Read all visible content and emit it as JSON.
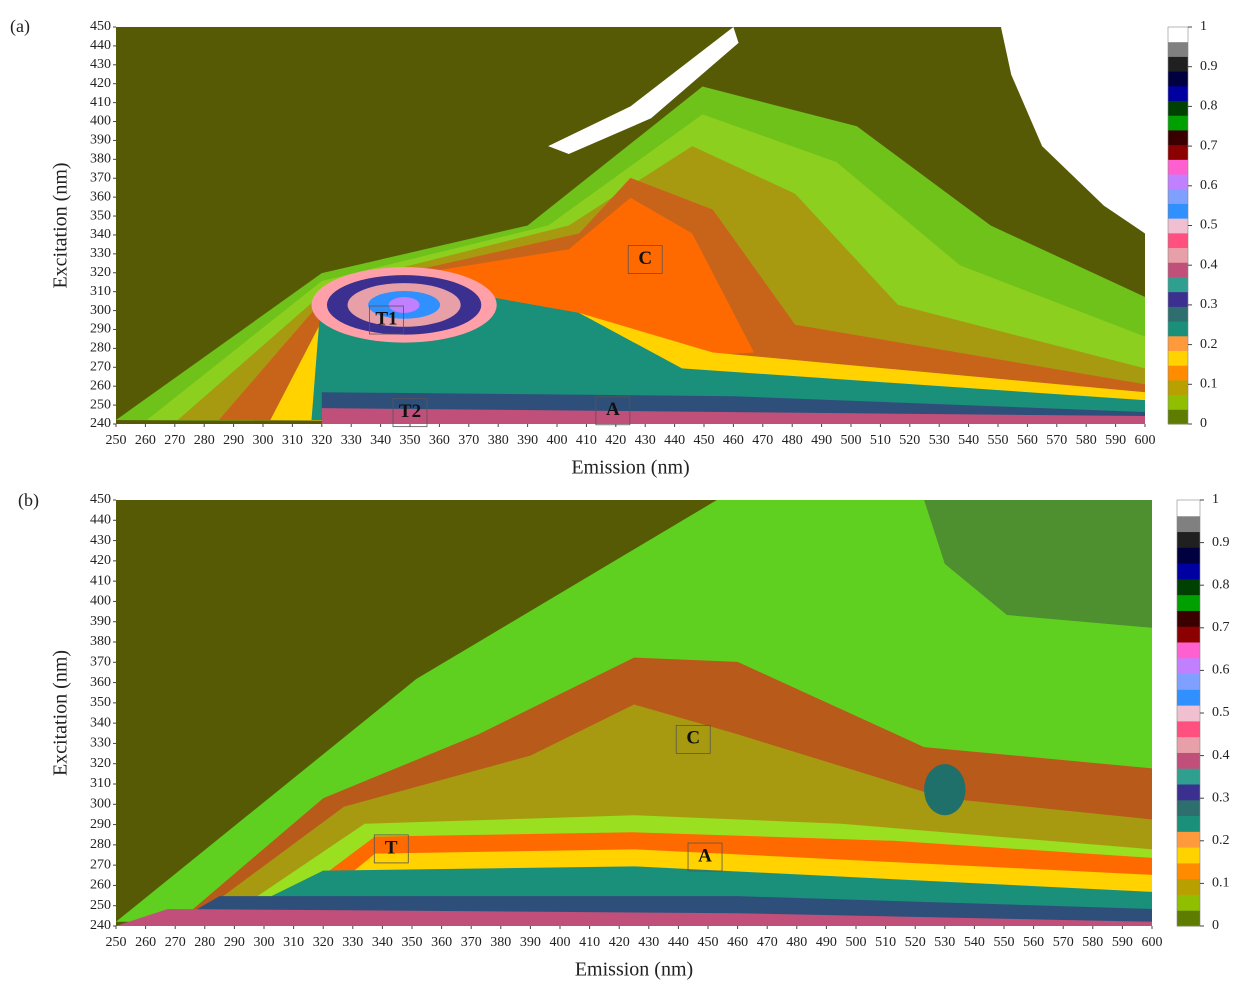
{
  "chart_data": [
    {
      "type": "contour",
      "panel_label": "(a)",
      "xlabel": "Emission (nm)",
      "ylabel": "Excitation (nm)",
      "xlim": [
        250,
        600
      ],
      "ylim": [
        240,
        450
      ],
      "xticks": [
        250,
        260,
        270,
        280,
        290,
        300,
        310,
        320,
        330,
        340,
        350,
        360,
        370,
        380,
        390,
        400,
        410,
        420,
        430,
        440,
        450,
        460,
        470,
        480,
        490,
        500,
        510,
        520,
        530,
        540,
        550,
        560,
        570,
        580,
        590,
        600
      ],
      "yticks": [
        240,
        250,
        260,
        270,
        280,
        290,
        300,
        310,
        320,
        330,
        340,
        350,
        360,
        370,
        380,
        390,
        400,
        410,
        420,
        430,
        440,
        450
      ],
      "colorbar": {
        "lim": [
          0,
          1
        ],
        "ticks": [
          0,
          0.1,
          0.2,
          0.3,
          0.4,
          0.5,
          0.6,
          0.7,
          0.8,
          0.9,
          1
        ],
        "colors": [
          "#5e7d00",
          "#8fbf00",
          "#b8a000",
          "#ff8c00",
          "#ffd200",
          "#ff9a3c",
          "#1a8f7a",
          "#2e6e6e",
          "#3b2f8f",
          "#2fa08f",
          "#c0507a",
          "#e8a0a8",
          "#ff5080",
          "#f0c0d0",
          "#3090ff",
          "#80a0ff",
          "#c080ff",
          "#ff60d0",
          "#8b0000",
          "#3a0000",
          "#00a000",
          "#004000",
          "#0000a0",
          "#000040",
          "#202020",
          "#808080",
          "#ffffff"
        ]
      },
      "annotations": [
        {
          "text": "C",
          "x": 430,
          "y": 327
        },
        {
          "text": "T1",
          "x": 342,
          "y": 295
        },
        {
          "text": "T2",
          "x": 350,
          "y": 246
        },
        {
          "text": "A",
          "x": 419,
          "y": 247
        }
      ]
    },
    {
      "type": "contour",
      "panel_label": "(b)",
      "xlabel": "Emission (nm)",
      "ylabel": "Excitation (nm)",
      "xlim": [
        250,
        600
      ],
      "ylim": [
        240,
        450
      ],
      "xticks": [
        250,
        260,
        270,
        280,
        290,
        300,
        310,
        320,
        330,
        340,
        350,
        360,
        370,
        380,
        390,
        400,
        410,
        420,
        430,
        440,
        450,
        460,
        470,
        480,
        490,
        500,
        510,
        520,
        530,
        540,
        550,
        560,
        570,
        580,
        590,
        600
      ],
      "yticks": [
        240,
        250,
        260,
        270,
        280,
        290,
        300,
        310,
        320,
        330,
        340,
        350,
        360,
        370,
        380,
        390,
        400,
        410,
        420,
        430,
        440,
        450
      ],
      "colorbar": {
        "lim": [
          0,
          1
        ],
        "ticks": [
          0,
          0.1,
          0.2,
          0.3,
          0.4,
          0.5,
          0.6,
          0.7,
          0.8,
          0.9,
          1
        ],
        "colors": [
          "#5e7d00",
          "#8fbf00",
          "#b8a000",
          "#ff8c00",
          "#ffd200",
          "#ff9a3c",
          "#1a8f7a",
          "#2e6e6e",
          "#3b2f8f",
          "#2fa08f",
          "#c0507a",
          "#e8a0a8",
          "#ff5080",
          "#f0c0d0",
          "#3090ff",
          "#80a0ff",
          "#c080ff",
          "#ff60d0",
          "#8b0000",
          "#3a0000",
          "#00a000",
          "#004000",
          "#0000a0",
          "#000040",
          "#202020",
          "#808080",
          "#ffffff"
        ]
      },
      "annotations": [
        {
          "text": "C",
          "x": 445,
          "y": 332
        },
        {
          "text": "T",
          "x": 343,
          "y": 278
        },
        {
          "text": "A",
          "x": 449,
          "y": 274
        }
      ]
    }
  ]
}
